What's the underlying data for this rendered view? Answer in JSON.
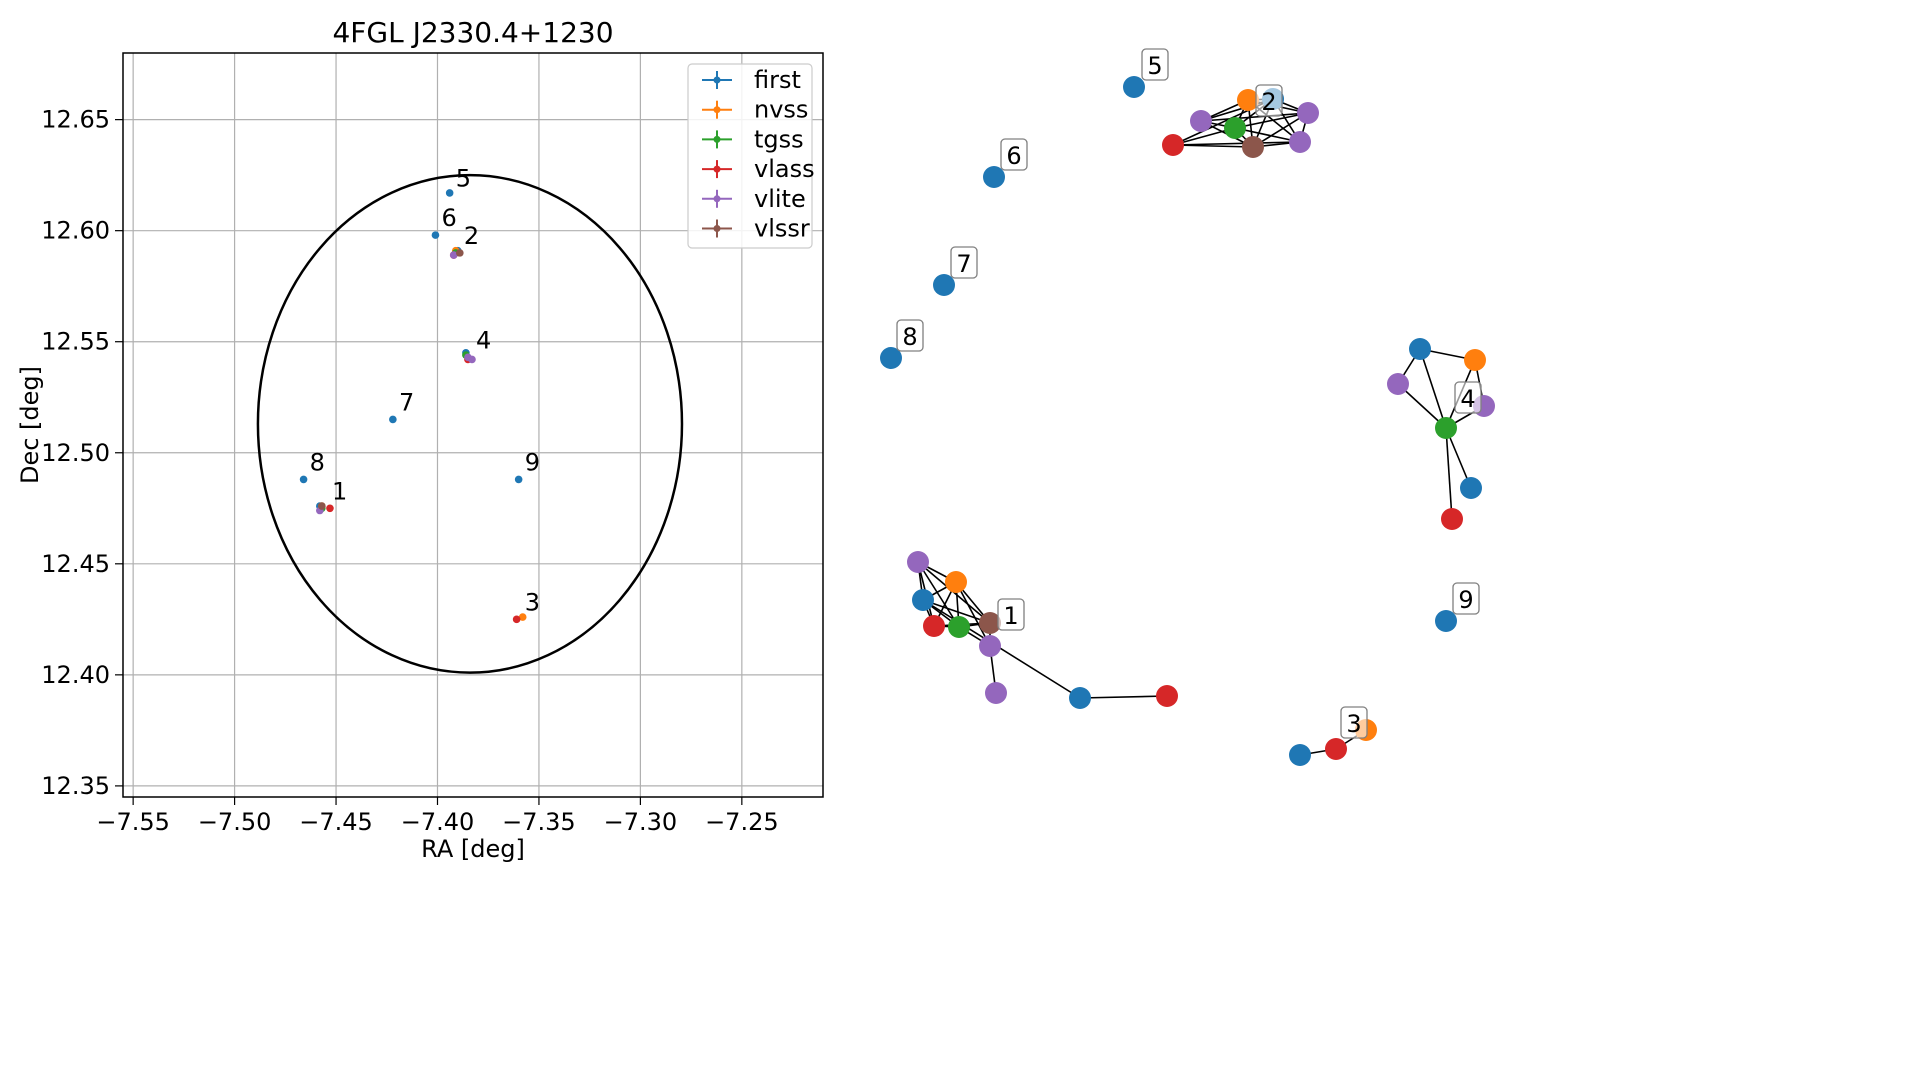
{
  "chart_data": [
    {
      "type": "scatter",
      "title": "4FGL J2330.4+1230",
      "xlabel": "RA [deg]",
      "ylabel": "Dec [deg]",
      "xlim": [
        -7.555,
        -7.21
      ],
      "ylim": [
        12.345,
        12.68
      ],
      "grid": true,
      "xticks": [
        -7.55,
        -7.5,
        -7.45,
        -7.4,
        -7.35,
        -7.3,
        -7.25
      ],
      "xtick_labels": [
        "−7.55",
        "−7.50",
        "−7.45",
        "−7.40",
        "−7.35",
        "−7.30",
        "−7.25"
      ],
      "yticks": [
        12.35,
        12.4,
        12.45,
        12.5,
        12.55,
        12.6,
        12.65
      ],
      "ytick_labels": [
        "12.35",
        "12.40",
        "12.45",
        "12.50",
        "12.55",
        "12.60",
        "12.65"
      ],
      "legend_position": "top-right",
      "series": [
        {
          "name": "first",
          "color": "#1f77b4",
          "points": [
            [
              -7.394,
              12.617
            ],
            [
              -7.401,
              12.598
            ],
            [
              -7.386,
              12.545
            ],
            [
              -7.422,
              12.515
            ],
            [
              -7.466,
              12.488
            ],
            [
              -7.36,
              12.488
            ],
            [
              -7.458,
              12.476
            ],
            [
              -7.39,
              12.591
            ]
          ]
        },
        {
          "name": "nvss",
          "color": "#ff7f0e",
          "points": [
            [
              -7.358,
              12.426
            ],
            [
              -7.391,
              12.591
            ],
            [
              -7.457,
              12.476
            ]
          ]
        },
        {
          "name": "tgss",
          "color": "#2ca02c",
          "points": [
            [
              -7.386,
              12.544
            ],
            [
              -7.391,
              12.59
            ],
            [
              -7.457,
              12.475
            ]
          ]
        },
        {
          "name": "vlass",
          "color": "#d62728",
          "points": [
            [
              -7.453,
              12.475
            ],
            [
              -7.361,
              12.425
            ],
            [
              -7.392,
              12.589
            ],
            [
              -7.385,
              12.542
            ]
          ]
        },
        {
          "name": "vlite",
          "color": "#9467bd",
          "points": [
            [
              -7.458,
              12.474
            ],
            [
              -7.385,
              12.543
            ],
            [
              -7.392,
              12.589
            ],
            [
              -7.383,
              12.542
            ]
          ]
        },
        {
          "name": "vlssr",
          "color": "#8c564b",
          "points": [
            [
              -7.389,
              12.59
            ],
            [
              -7.457,
              12.476
            ]
          ]
        }
      ],
      "ellipse": {
        "center": [
          -7.384,
          12.513
        ],
        "ra_radius": 0.1045,
        "dec_radius": 0.112
      },
      "annotations": [
        {
          "text": "1",
          "at": [
            -7.452,
            12.479
          ]
        },
        {
          "text": "2",
          "at": [
            -7.387,
            12.594
          ]
        },
        {
          "text": "3",
          "at": [
            -7.357,
            12.429
          ]
        },
        {
          "text": "4",
          "at": [
            -7.381,
            12.547
          ]
        },
        {
          "text": "5",
          "at": [
            -7.391,
            12.62
          ]
        },
        {
          "text": "6",
          "at": [
            -7.398,
            12.602
          ]
        },
        {
          "text": "7",
          "at": [
            -7.419,
            12.519
          ]
        },
        {
          "text": "8",
          "at": [
            -7.463,
            12.492
          ]
        },
        {
          "text": "9",
          "at": [
            -7.357,
            12.492
          ]
        }
      ]
    },
    {
      "type": "network",
      "node_colors": {
        "first": "#1f77b4",
        "nvss": "#ff7f0e",
        "tgss": "#2ca02c",
        "vlass": "#d62728",
        "vlite": "#9467bd",
        "vlssr": "#8c564b"
      },
      "nodes": [
        {
          "id": "5a",
          "cat": "first",
          "pos": [
            1134,
            87
          ]
        },
        {
          "id": "6a",
          "cat": "first",
          "pos": [
            994,
            177
          ]
        },
        {
          "id": "7a",
          "cat": "first",
          "pos": [
            944,
            285
          ]
        },
        {
          "id": "8a",
          "cat": "first",
          "pos": [
            891,
            358
          ]
        },
        {
          "id": "9a",
          "cat": "first",
          "pos": [
            1446,
            621
          ]
        },
        {
          "id": "2a",
          "cat": "first",
          "pos": [
            1273,
            99
          ]
        },
        {
          "id": "2b",
          "cat": "nvss",
          "pos": [
            1248,
            100
          ]
        },
        {
          "id": "2c",
          "cat": "vlite",
          "pos": [
            1201,
            121
          ]
        },
        {
          "id": "2d",
          "cat": "tgss",
          "pos": [
            1235,
            128
          ]
        },
        {
          "id": "2e",
          "cat": "vlite",
          "pos": [
            1308,
            113
          ]
        },
        {
          "id": "2f",
          "cat": "vlass",
          "pos": [
            1173,
            145
          ]
        },
        {
          "id": "2g",
          "cat": "vlssr",
          "pos": [
            1253,
            147
          ]
        },
        {
          "id": "2h",
          "cat": "vlite",
          "pos": [
            1300,
            142
          ]
        },
        {
          "id": "4a",
          "cat": "first",
          "pos": [
            1420,
            349
          ]
        },
        {
          "id": "4b",
          "cat": "nvss",
          "pos": [
            1475,
            360
          ]
        },
        {
          "id": "4c",
          "cat": "vlite",
          "pos": [
            1398,
            384
          ]
        },
        {
          "id": "4d",
          "cat": "vlite",
          "pos": [
            1484,
            406
          ]
        },
        {
          "id": "4e",
          "cat": "tgss",
          "pos": [
            1446,
            428
          ]
        },
        {
          "id": "4f",
          "cat": "first",
          "pos": [
            1471,
            488
          ]
        },
        {
          "id": "4g",
          "cat": "vlass",
          "pos": [
            1452,
            519
          ]
        },
        {
          "id": "1a",
          "cat": "vlite",
          "pos": [
            918,
            562
          ]
        },
        {
          "id": "1b",
          "cat": "nvss",
          "pos": [
            956,
            582
          ]
        },
        {
          "id": "1c",
          "cat": "first",
          "pos": [
            923,
            600
          ]
        },
        {
          "id": "1d",
          "cat": "vlass",
          "pos": [
            934,
            626
          ]
        },
        {
          "id": "1e",
          "cat": "tgss",
          "pos": [
            959,
            627
          ]
        },
        {
          "id": "1f",
          "cat": "vlssr",
          "pos": [
            990,
            623
          ]
        },
        {
          "id": "1g",
          "cat": "vlite",
          "pos": [
            990,
            646
          ]
        },
        {
          "id": "1h",
          "cat": "vlite",
          "pos": [
            996,
            693
          ]
        },
        {
          "id": "1i",
          "cat": "first",
          "pos": [
            1080,
            698
          ]
        },
        {
          "id": "1j",
          "cat": "vlass",
          "pos": [
            1167,
            696
          ]
        },
        {
          "id": "3a",
          "cat": "nvss",
          "pos": [
            1366,
            730
          ]
        },
        {
          "id": "3b",
          "cat": "vlass",
          "pos": [
            1336,
            749
          ]
        },
        {
          "id": "3c",
          "cat": "first",
          "pos": [
            1300,
            755
          ]
        }
      ],
      "edges": [
        [
          "2a",
          "2b"
        ],
        [
          "2a",
          "2c"
        ],
        [
          "2a",
          "2d"
        ],
        [
          "2a",
          "2e"
        ],
        [
          "2a",
          "2g"
        ],
        [
          "2a",
          "2h"
        ],
        [
          "2a",
          "2f"
        ],
        [
          "2b",
          "2c"
        ],
        [
          "2b",
          "2d"
        ],
        [
          "2b",
          "2e"
        ],
        [
          "2b",
          "2g"
        ],
        [
          "2b",
          "2h"
        ],
        [
          "2c",
          "2d"
        ],
        [
          "2c",
          "2g"
        ],
        [
          "2c",
          "2e"
        ],
        [
          "2d",
          "2f"
        ],
        [
          "2d",
          "2g"
        ],
        [
          "2d",
          "2e"
        ],
        [
          "2d",
          "2h"
        ],
        [
          "2f",
          "2g"
        ],
        [
          "2f",
          "2h"
        ],
        [
          "2g",
          "2h"
        ],
        [
          "2e",
          "2h"
        ],
        [
          "2e",
          "2g"
        ],
        [
          "4a",
          "4b"
        ],
        [
          "4a",
          "4c"
        ],
        [
          "4a",
          "4e"
        ],
        [
          "4b",
          "4e"
        ],
        [
          "4b",
          "4d"
        ],
        [
          "4c",
          "4e"
        ],
        [
          "4d",
          "4e"
        ],
        [
          "4e",
          "4f"
        ],
        [
          "4e",
          "4g"
        ],
        [
          "1a",
          "1b"
        ],
        [
          "1a",
          "1c"
        ],
        [
          "1a",
          "1d"
        ],
        [
          "1a",
          "1e"
        ],
        [
          "1a",
          "1f"
        ],
        [
          "1b",
          "1c"
        ],
        [
          "1b",
          "1d"
        ],
        [
          "1b",
          "1e"
        ],
        [
          "1b",
          "1f"
        ],
        [
          "1b",
          "1g"
        ],
        [
          "1c",
          "1d"
        ],
        [
          "1c",
          "1e"
        ],
        [
          "1c",
          "1f"
        ],
        [
          "1c",
          "1i"
        ],
        [
          "1d",
          "1e"
        ],
        [
          "1d",
          "1f"
        ],
        [
          "1e",
          "1f"
        ],
        [
          "1e",
          "1g"
        ],
        [
          "1f",
          "1g"
        ],
        [
          "1g",
          "1h"
        ],
        [
          "1i",
          "1j"
        ],
        [
          "3a",
          "3b"
        ],
        [
          "3b",
          "3c"
        ]
      ],
      "labels": [
        {
          "text": "5",
          "pos": [
            1155,
            67
          ]
        },
        {
          "text": "6",
          "pos": [
            1014,
            157
          ]
        },
        {
          "text": "7",
          "pos": [
            964,
            265
          ]
        },
        {
          "text": "8",
          "pos": [
            910,
            338
          ]
        },
        {
          "text": "2",
          "pos": [
            1269,
            103
          ]
        },
        {
          "text": "4",
          "pos": [
            1468,
            400
          ]
        },
        {
          "text": "1",
          "pos": [
            1011,
            617
          ]
        },
        {
          "text": "9",
          "pos": [
            1466,
            601
          ]
        },
        {
          "text": "3",
          "pos": [
            1354,
            725
          ]
        }
      ]
    }
  ]
}
